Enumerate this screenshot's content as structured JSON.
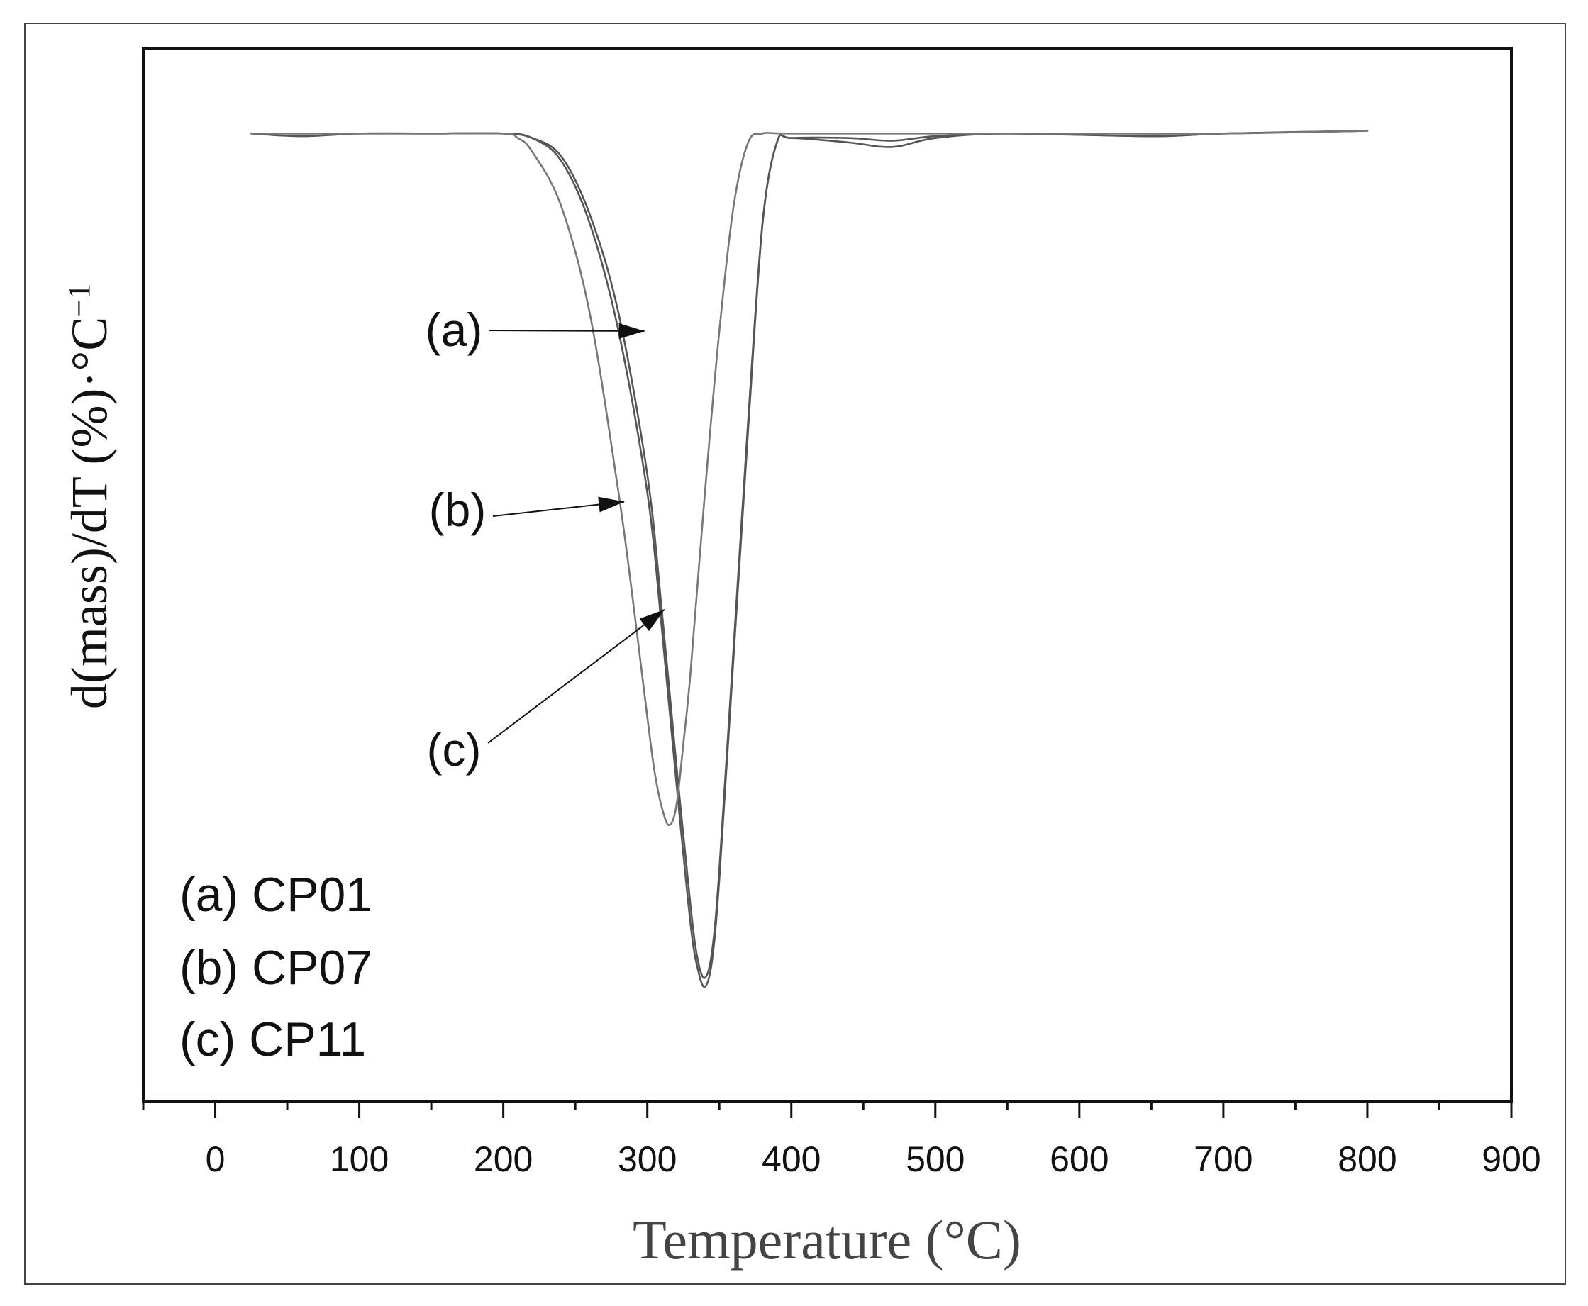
{
  "chart_data": {
    "type": "line",
    "title": "",
    "xlabel": "Temperature (°C)",
    "ylabel": "d(mass)/dT (%)·°C",
    "ylabel_superscript": "−1",
    "xlim": [
      -50,
      900
    ],
    "ylim": [
      -1.0,
      0.05
    ],
    "xticks": [
      0,
      100,
      200,
      300,
      400,
      500,
      600,
      700,
      800,
      900
    ],
    "y_tick_labels": false,
    "grid": false,
    "legend_position": "bottom-left",
    "series": [
      {
        "name": "(a) CP01",
        "marker": "(a)",
        "color": "#555555",
        "x": [
          25,
          60,
          100,
          150,
          200,
          220,
          240,
          260,
          280,
          300,
          310,
          320,
          330,
          335,
          340,
          345,
          350,
          360,
          370,
          380,
          390,
          400,
          440,
          470,
          500,
          550,
          650,
          700,
          800
        ],
        "y": [
          0,
          0,
          0,
          0,
          0,
          -0.005,
          -0.03,
          -0.1,
          -0.22,
          -0.4,
          -0.55,
          -0.72,
          -0.88,
          -0.93,
          -0.95,
          -0.92,
          -0.83,
          -0.58,
          -0.33,
          -0.1,
          -0.01,
          -0.005,
          -0.01,
          -0.015,
          -0.005,
          0,
          -0.003,
          0,
          0.003
        ]
      },
      {
        "name": "(b) CP07",
        "marker": "(b)",
        "color": "#555555",
        "x": [
          25,
          60,
          100,
          150,
          200,
          220,
          240,
          260,
          280,
          300,
          310,
          320,
          330,
          335,
          340,
          345,
          350,
          360,
          370,
          380,
          390,
          400,
          440,
          470,
          500,
          550,
          650,
          700,
          800
        ],
        "y": [
          0,
          -0.003,
          0,
          0,
          0,
          -0.005,
          -0.025,
          -0.09,
          -0.2,
          -0.38,
          -0.53,
          -0.7,
          -0.86,
          -0.92,
          -0.94,
          -0.91,
          -0.82,
          -0.57,
          -0.32,
          -0.1,
          -0.01,
          -0.005,
          -0.005,
          -0.008,
          -0.003,
          0,
          -0.003,
          0,
          0.003
        ]
      },
      {
        "name": "(c) CP11",
        "marker": "(c)",
        "color": "#777777",
        "x": [
          25,
          60,
          100,
          150,
          200,
          210,
          220,
          240,
          260,
          280,
          290,
          300,
          305,
          310,
          315,
          320,
          325,
          330,
          340,
          350,
          360,
          370,
          380,
          400,
          500,
          600,
          700,
          800
        ],
        "y": [
          0,
          0,
          0,
          0,
          0,
          -0.005,
          -0.02,
          -0.08,
          -0.2,
          -0.4,
          -0.52,
          -0.65,
          -0.71,
          -0.75,
          -0.77,
          -0.75,
          -0.68,
          -0.6,
          -0.4,
          -0.22,
          -0.08,
          -0.01,
          0,
          0,
          0,
          0,
          0,
          0.003
        ]
      }
    ],
    "annotations": [
      {
        "label": "(a)",
        "points_to": {
          "x": 298,
          "y": -0.22
        }
      },
      {
        "label": "(b)",
        "points_to": {
          "x": 284,
          "y": -0.41
        }
      },
      {
        "label": "(c)",
        "points_to": {
          "x": 312,
          "y": -0.53
        }
      }
    ]
  }
}
